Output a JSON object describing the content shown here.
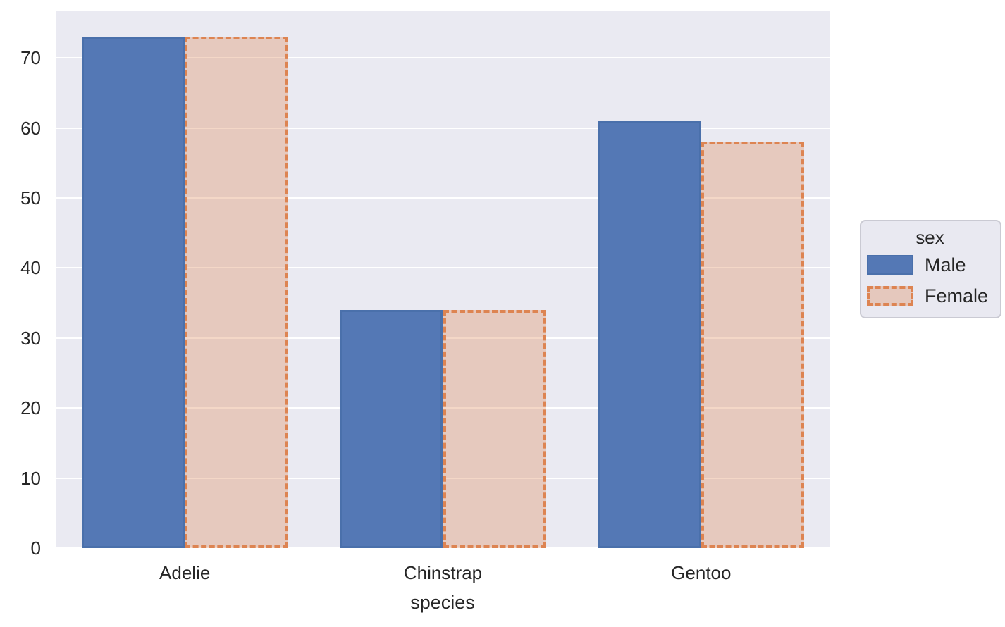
{
  "chart_data": {
    "type": "bar",
    "title": "",
    "xlabel": "species",
    "ylabel": "",
    "categories": [
      "Adelie",
      "Chinstrap",
      "Gentoo"
    ],
    "series": [
      {
        "name": "Male",
        "style": "solid",
        "values": [
          73,
          34,
          61
        ]
      },
      {
        "name": "Female",
        "style": "dashed",
        "values": [
          73,
          34,
          58
        ]
      }
    ],
    "yticks": [
      0,
      10,
      20,
      30,
      40,
      50,
      60,
      70
    ],
    "ylim": [
      0,
      76.65
    ],
    "grid": true,
    "legend": {
      "title": "sex",
      "position": "right-outside"
    }
  },
  "colors": {
    "male_fill": "#5478b5",
    "male_edge": "#4a70ab",
    "female_edge": "#dd8452",
    "female_fill": "rgba(221,132,82,0.32)",
    "plot_background": "#eaeaf2",
    "gridline": "#ffffff",
    "text": "#262626",
    "legend_background": "#e9e9f1",
    "legend_border": "#cacad3"
  }
}
